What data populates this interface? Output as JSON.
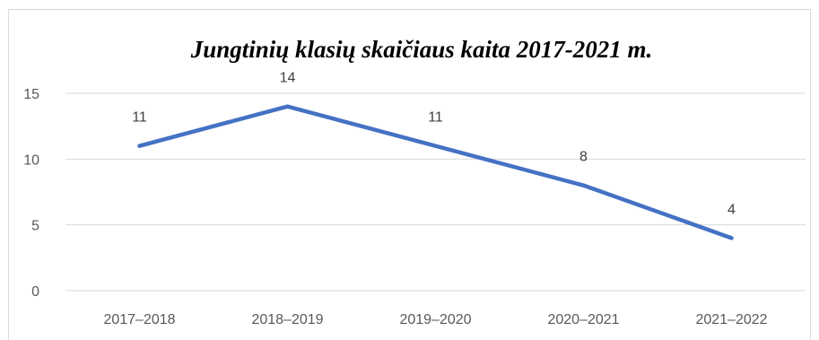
{
  "chart_data": {
    "type": "line",
    "title": "Jungtinių klasių skaičiaus kaita 2017-2021 m.",
    "xlabel": "",
    "ylabel": "",
    "categories": [
      "2017–2018",
      "2018–2019",
      "2019–2020",
      "2020–2021",
      "2021–2022"
    ],
    "series": [
      {
        "values": [
          11,
          14,
          11,
          8,
          4
        ],
        "data_labels": [
          "11",
          "14",
          "11",
          "8",
          "4"
        ]
      }
    ],
    "ylim": [
      0,
      15
    ],
    "yticks": [
      0,
      5,
      10,
      15
    ],
    "ytick_labels": [
      "0",
      "5",
      "10",
      "15"
    ],
    "grid": true,
    "legend": "none",
    "line_color": "#4472c4",
    "grid_color": "#d9d9d9"
  }
}
